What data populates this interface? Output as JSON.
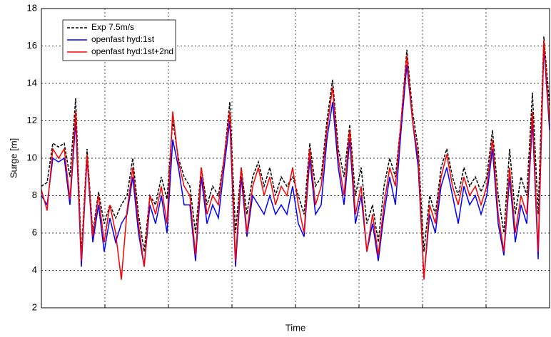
{
  "chart_data": {
    "type": "line",
    "ylabel": "Surge [m]",
    "xlabel": "Time",
    "categories": [
      null,
      null,
      null,
      null,
      null,
      null,
      null,
      null,
      null,
      null,
      null,
      null,
      null,
      null,
      null,
      null,
      null,
      null,
      null,
      null,
      null,
      null,
      null,
      null,
      null,
      null,
      null,
      null,
      null,
      null,
      null,
      null,
      null,
      null,
      null,
      null,
      null,
      null,
      null,
      null,
      null,
      null,
      null,
      null,
      null,
      null,
      null,
      null,
      null,
      null,
      null,
      null,
      null,
      null,
      null,
      null,
      null,
      null,
      null,
      null,
      null,
      null,
      null,
      null,
      null,
      null,
      null,
      null,
      null,
      null,
      null,
      null,
      null,
      null,
      null,
      null,
      null,
      null,
      null,
      null,
      null,
      null,
      null,
      null,
      null,
      null,
      null,
      null,
      null,
      null
    ],
    "series": [
      {
        "name": "Exp 7.5m/s",
        "color": "#000000",
        "dashed": true,
        "values": [
          8.5,
          8.7,
          10.8,
          10.6,
          10.8,
          9.0,
          13.2,
          4.8,
          10.5,
          6.0,
          8.2,
          6.5,
          7.5,
          6.8,
          7.5,
          8.0,
          10.0,
          7.0,
          5.0,
          8.0,
          7.5,
          9.0,
          7.8,
          12.0,
          10.0,
          9.0,
          8.5,
          6.0,
          9.5,
          7.5,
          8.5,
          8.0,
          10.0,
          13.0,
          6.0,
          9.5,
          7.0,
          9.0,
          9.8,
          8.5,
          9.5,
          8.0,
          9.0,
          8.5,
          9.0,
          8.0,
          7.0,
          10.8,
          8.5,
          9.0,
          12.0,
          14.2,
          10.5,
          9.0,
          11.8,
          8.0,
          9.5,
          6.5,
          7.5,
          5.5,
          8.5,
          10.0,
          9.0,
          12.0,
          15.8,
          12.5,
          10.5,
          5.0,
          8.0,
          7.0,
          9.5,
          10.5,
          9.0,
          8.0,
          9.5,
          8.5,
          9.0,
          8.2,
          9.0,
          11.5,
          8.0,
          6.0,
          10.5,
          7.0,
          9.0,
          8.0,
          13.5,
          7.0,
          16.5,
          12.8
        ]
      },
      {
        "name": "openfast hyd:1st",
        "color": "#0000ff",
        "dashed": false,
        "values": [
          8.0,
          7.5,
          10.0,
          9.8,
          10.0,
          7.5,
          12.0,
          4.2,
          10.0,
          5.5,
          7.5,
          5.0,
          6.8,
          5.5,
          6.5,
          7.0,
          9.0,
          6.0,
          4.2,
          7.5,
          6.5,
          8.0,
          6.0,
          11.0,
          9.5,
          7.5,
          7.5,
          4.5,
          9.0,
          6.5,
          7.5,
          6.8,
          9.5,
          12.0,
          4.2,
          9.0,
          5.8,
          8.0,
          7.5,
          7.0,
          8.0,
          7.0,
          7.5,
          7.0,
          8.5,
          6.5,
          5.8,
          10.0,
          7.0,
          7.5,
          11.0,
          13.0,
          9.5,
          7.5,
          11.0,
          6.5,
          8.0,
          5.0,
          6.5,
          4.5,
          7.0,
          9.0,
          7.5,
          11.5,
          15.0,
          12.0,
          9.5,
          3.6,
          7.0,
          6.0,
          8.5,
          9.5,
          8.0,
          6.5,
          8.5,
          7.5,
          8.0,
          7.0,
          8.0,
          10.5,
          6.5,
          4.8,
          9.0,
          5.5,
          7.5,
          6.5,
          12.0,
          4.6,
          16.0,
          11.5
        ]
      },
      {
        "name": "openfast hyd:1st+2nd",
        "color": "#ff0000",
        "dashed": false,
        "values": [
          8.3,
          7.2,
          10.5,
          10.0,
          10.5,
          7.8,
          12.5,
          4.5,
          10.2,
          5.8,
          8.0,
          5.5,
          7.5,
          6.0,
          3.5,
          7.2,
          9.5,
          6.5,
          4.2,
          8.0,
          7.0,
          8.5,
          6.5,
          12.5,
          9.8,
          8.5,
          8.0,
          4.8,
          9.5,
          7.0,
          8.0,
          7.5,
          10.0,
          12.5,
          4.5,
          9.5,
          6.0,
          8.5,
          9.5,
          8.0,
          9.0,
          7.5,
          8.5,
          8.0,
          9.5,
          7.5,
          6.0,
          10.5,
          7.5,
          8.5,
          11.5,
          13.8,
          10.0,
          8.0,
          11.5,
          7.0,
          8.5,
          5.0,
          7.0,
          4.8,
          7.5,
          9.5,
          8.5,
          12.0,
          15.5,
          12.0,
          10.0,
          3.5,
          7.5,
          6.5,
          9.0,
          10.2,
          8.5,
          7.5,
          9.0,
          8.0,
          8.5,
          7.5,
          8.5,
          11.0,
          7.0,
          5.0,
          9.5,
          6.0,
          8.0,
          7.0,
          12.5,
          5.0,
          16.3,
          11.8
        ]
      }
    ],
    "ylim": [
      2,
      18
    ],
    "yticks": [
      2,
      4,
      6,
      8,
      10,
      12,
      14,
      16,
      18
    ],
    "grid": true,
    "legend": "upper-left"
  }
}
